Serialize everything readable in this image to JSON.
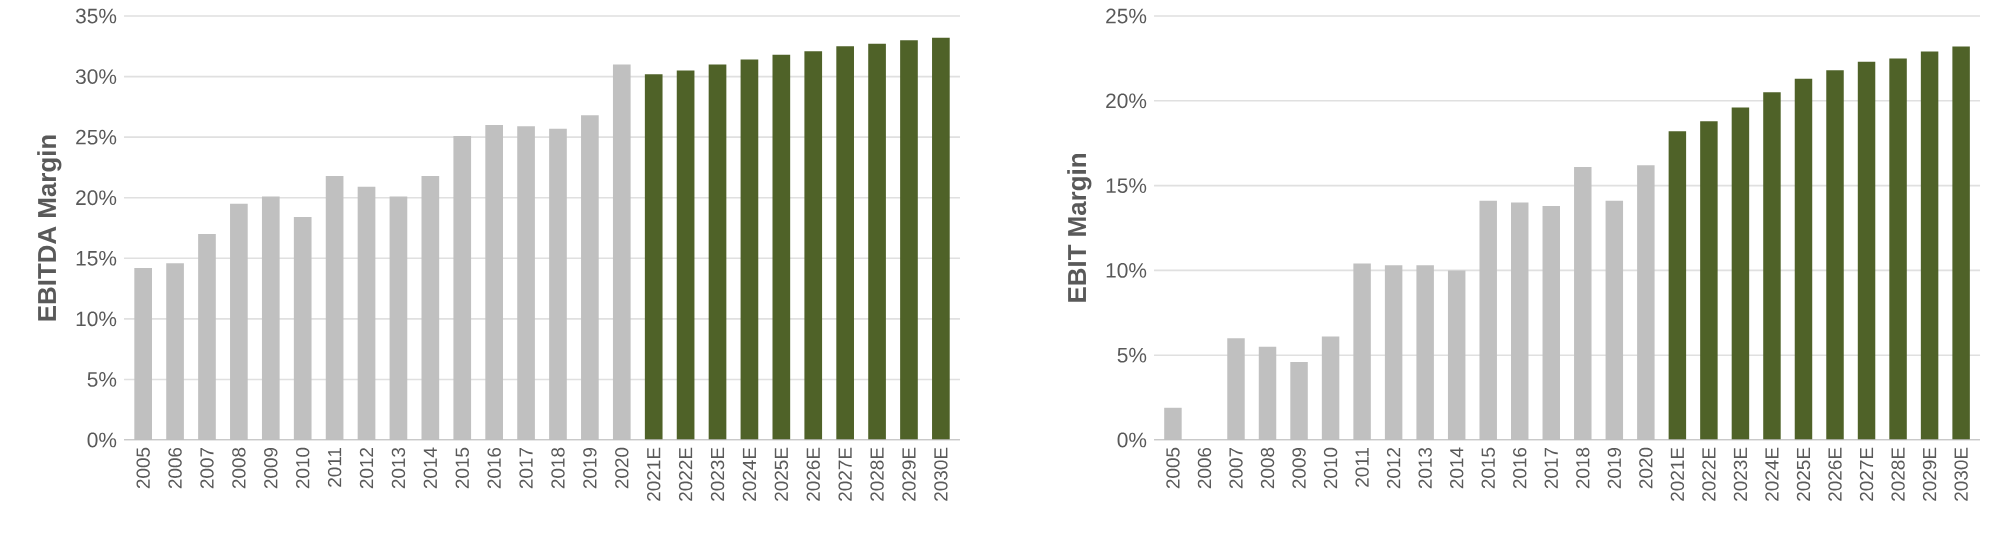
{
  "chart_data": [
    {
      "type": "bar",
      "ylabel": "EBITDA Margin",
      "categories": [
        "2005",
        "2006",
        "2007",
        "2008",
        "2009",
        "2010",
        "2011",
        "2012",
        "2013",
        "2014",
        "2015",
        "2016",
        "2017",
        "2018",
        "2019",
        "2020",
        "2021E",
        "2022E",
        "2023E",
        "2024E",
        "2025E",
        "2026E",
        "2027E",
        "2028E",
        "2029E",
        "2030E"
      ],
      "values": [
        14.2,
        14.6,
        17.0,
        19.5,
        20.1,
        18.4,
        21.8,
        20.9,
        20.1,
        21.8,
        25.1,
        26.0,
        25.9,
        25.7,
        26.8,
        31.0,
        30.2,
        30.5,
        31.0,
        31.4,
        31.8,
        32.1,
        32.5,
        32.7,
        33.0,
        33.2
      ],
      "colors": [
        "#c0c0c0",
        "#c0c0c0",
        "#c0c0c0",
        "#c0c0c0",
        "#c0c0c0",
        "#c0c0c0",
        "#c0c0c0",
        "#c0c0c0",
        "#c0c0c0",
        "#c0c0c0",
        "#c0c0c0",
        "#c0c0c0",
        "#c0c0c0",
        "#c0c0c0",
        "#c0c0c0",
        "#c0c0c0",
        "#4f6228",
        "#4f6228",
        "#4f6228",
        "#4f6228",
        "#4f6228",
        "#4f6228",
        "#4f6228",
        "#4f6228",
        "#4f6228",
        "#4f6228"
      ],
      "ylim": [
        0,
        35
      ],
      "yticks": [
        {
          "value": 0,
          "label": "0%"
        },
        {
          "value": 5,
          "label": "5%"
        },
        {
          "value": 10,
          "label": "10%"
        },
        {
          "value": 15,
          "label": "15%"
        },
        {
          "value": 20,
          "label": "20%"
        },
        {
          "value": 25,
          "label": "25%"
        },
        {
          "value": 30,
          "label": "30%"
        },
        {
          "value": 35,
          "label": "35%"
        }
      ],
      "grid": "y"
    },
    {
      "type": "bar",
      "ylabel": "EBIT Margin",
      "categories": [
        "2005",
        "2006",
        "2007",
        "2008",
        "2009",
        "2010",
        "2011",
        "2012",
        "2013",
        "2014",
        "2015",
        "2016",
        "2017",
        "2018",
        "2019",
        "2020",
        "2021E",
        "2022E",
        "2023E",
        "2024E",
        "2025E",
        "2026E",
        "2027E",
        "2028E",
        "2029E",
        "2030E"
      ],
      "values": [
        1.9,
        0,
        6.0,
        5.5,
        4.6,
        6.1,
        10.4,
        10.3,
        10.3,
        10.0,
        14.1,
        14.0,
        13.8,
        16.1,
        14.1,
        16.2,
        18.2,
        18.8,
        19.6,
        20.5,
        21.3,
        21.8,
        22.3,
        22.5,
        22.9,
        23.2
      ],
      "colors": [
        "#c0c0c0",
        "#c0c0c0",
        "#c0c0c0",
        "#c0c0c0",
        "#c0c0c0",
        "#c0c0c0",
        "#c0c0c0",
        "#c0c0c0",
        "#c0c0c0",
        "#c0c0c0",
        "#c0c0c0",
        "#c0c0c0",
        "#c0c0c0",
        "#c0c0c0",
        "#c0c0c0",
        "#c0c0c0",
        "#4f6228",
        "#4f6228",
        "#4f6228",
        "#4f6228",
        "#4f6228",
        "#4f6228",
        "#4f6228",
        "#4f6228",
        "#4f6228",
        "#4f6228"
      ],
      "ylim": [
        0,
        25
      ],
      "yticks": [
        {
          "value": 0,
          "label": "0%"
        },
        {
          "value": 5,
          "label": "5%"
        },
        {
          "value": 10,
          "label": "10%"
        },
        {
          "value": 15,
          "label": "15%"
        },
        {
          "value": 20,
          "label": "20%"
        },
        {
          "value": 25,
          "label": "25%"
        }
      ],
      "grid": "y"
    }
  ]
}
